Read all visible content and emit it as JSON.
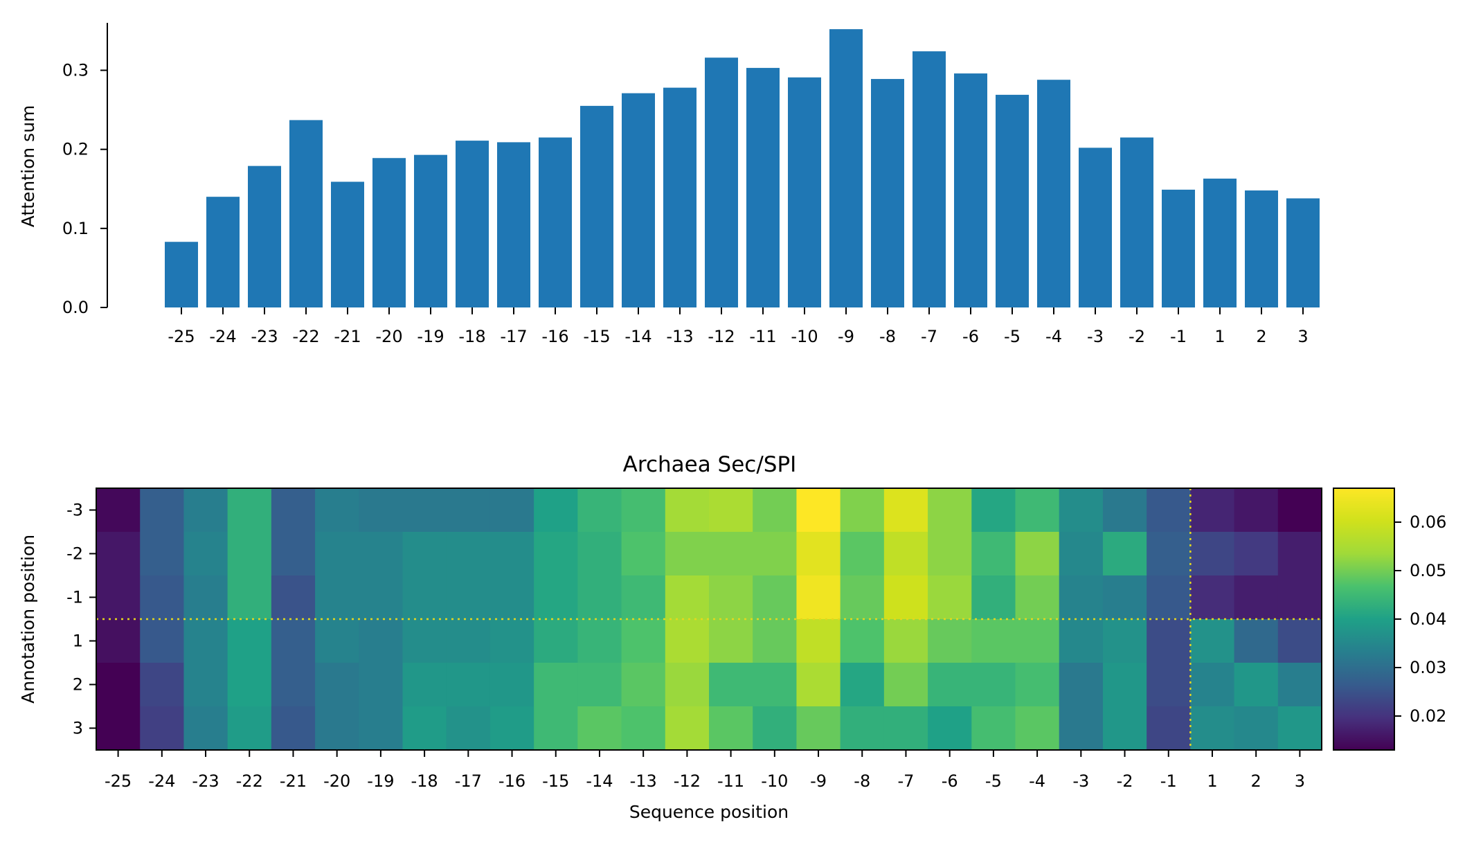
{
  "chart_data": [
    {
      "type": "bar",
      "ylabel": "Attention sum",
      "xlabel": "",
      "title": "",
      "categories": [
        "-25",
        "-24",
        "-23",
        "-22",
        "-21",
        "-20",
        "-19",
        "-18",
        "-17",
        "-16",
        "-15",
        "-14",
        "-13",
        "-12",
        "-11",
        "-10",
        "-9",
        "-8",
        "-7",
        "-6",
        "-5",
        "-4",
        "-3",
        "-2",
        "-1",
        "1",
        "2",
        "3"
      ],
      "values": [
        0.083,
        0.14,
        0.179,
        0.237,
        0.159,
        0.189,
        0.193,
        0.211,
        0.209,
        0.215,
        0.255,
        0.271,
        0.278,
        0.316,
        0.303,
        0.291,
        0.352,
        0.289,
        0.324,
        0.296,
        0.269,
        0.288,
        0.202,
        0.215,
        0.149,
        0.163,
        0.148,
        0.138
      ],
      "ylim": [
        0,
        0.36
      ],
      "yticks": [
        0.0,
        0.1,
        0.2,
        0.3
      ],
      "ytick_labels": [
        "0.0",
        "0.1",
        "0.2",
        "0.3"
      ],
      "color": "#1f77b4"
    },
    {
      "type": "heatmap",
      "title": "Archaea Sec/SPI",
      "xlabel": "Sequence position",
      "ylabel": "Annotation position",
      "x_categories": [
        "-25",
        "-24",
        "-23",
        "-22",
        "-21",
        "-20",
        "-19",
        "-18",
        "-17",
        "-16",
        "-15",
        "-14",
        "-13",
        "-12",
        "-11",
        "-10",
        "-9",
        "-8",
        "-7",
        "-6",
        "-5",
        "-4",
        "-3",
        "-2",
        "-1",
        "1",
        "2",
        "3"
      ],
      "y_categories": [
        "-3",
        "-2",
        "-1",
        "1",
        "2",
        "3"
      ],
      "values": [
        [
          0.014,
          0.027,
          0.033,
          0.043,
          0.027,
          0.033,
          0.032,
          0.032,
          0.032,
          0.032,
          0.04,
          0.044,
          0.046,
          0.054,
          0.055,
          0.05,
          0.067,
          0.051,
          0.062,
          0.052,
          0.041,
          0.045,
          0.036,
          0.032,
          0.026,
          0.018,
          0.016,
          0.013
        ],
        [
          0.016,
          0.027,
          0.034,
          0.043,
          0.027,
          0.034,
          0.034,
          0.036,
          0.036,
          0.036,
          0.041,
          0.043,
          0.047,
          0.051,
          0.051,
          0.051,
          0.063,
          0.048,
          0.058,
          0.052,
          0.045,
          0.052,
          0.035,
          0.042,
          0.027,
          0.023,
          0.021,
          0.017
        ],
        [
          0.016,
          0.026,
          0.033,
          0.043,
          0.025,
          0.034,
          0.034,
          0.036,
          0.036,
          0.036,
          0.041,
          0.043,
          0.045,
          0.054,
          0.052,
          0.049,
          0.065,
          0.049,
          0.06,
          0.053,
          0.043,
          0.05,
          0.034,
          0.033,
          0.026,
          0.019,
          0.017,
          0.017
        ],
        [
          0.015,
          0.026,
          0.034,
          0.04,
          0.027,
          0.034,
          0.033,
          0.036,
          0.036,
          0.037,
          0.042,
          0.044,
          0.047,
          0.055,
          0.052,
          0.049,
          0.058,
          0.047,
          0.053,
          0.049,
          0.048,
          0.048,
          0.035,
          0.037,
          0.024,
          0.037,
          0.029,
          0.024
        ],
        [
          0.013,
          0.023,
          0.034,
          0.04,
          0.027,
          0.032,
          0.033,
          0.038,
          0.038,
          0.038,
          0.045,
          0.045,
          0.048,
          0.053,
          0.045,
          0.045,
          0.055,
          0.041,
          0.05,
          0.044,
          0.044,
          0.046,
          0.032,
          0.038,
          0.024,
          0.034,
          0.038,
          0.033
        ],
        [
          0.013,
          0.022,
          0.033,
          0.039,
          0.026,
          0.032,
          0.033,
          0.039,
          0.037,
          0.039,
          0.045,
          0.048,
          0.047,
          0.054,
          0.048,
          0.043,
          0.049,
          0.043,
          0.043,
          0.04,
          0.046,
          0.048,
          0.032,
          0.038,
          0.023,
          0.036,
          0.035,
          0.038
        ]
      ],
      "colormap": "viridis",
      "colorbar_range": [
        0.013,
        0.067
      ],
      "colorbar_ticks": [
        0.02,
        0.03,
        0.04,
        0.05,
        0.06
      ],
      "colorbar_tick_labels": [
        "0.02",
        "0.03",
        "0.04",
        "0.05",
        "0.06"
      ],
      "divider_color": "#e5d81d",
      "divider_after_x": "-1",
      "divider_after_y": "-1"
    }
  ]
}
